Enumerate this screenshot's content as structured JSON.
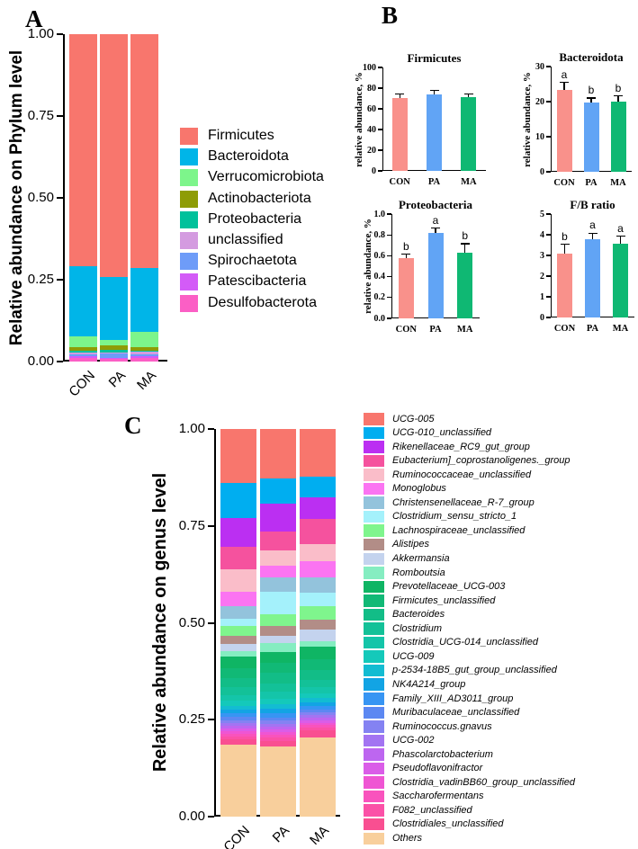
{
  "figure": {
    "background": "#ffffff",
    "panel_labels": {
      "a": "A",
      "b": "B",
      "c": "C"
    },
    "groups": [
      "CON",
      "PA",
      "MA"
    ],
    "group_bar_colors": [
      "#F9918B",
      "#61A4F5",
      "#0FB873"
    ]
  },
  "chart_data": [
    {
      "id": "phylum_stack",
      "type": "bar",
      "stacked": true,
      "ylabel": "Relative abundance on Phylum level",
      "categories": [
        "CON",
        "PA",
        "MA"
      ],
      "ylim": [
        0,
        1
      ],
      "ytick_labels": [
        "1.00",
        "0.75",
        "0.50",
        "0.25",
        "0.00"
      ],
      "legend_position": "right",
      "series": [
        {
          "name": "Firmicutes",
          "color": "#F8766D",
          "values": [
            0.71,
            0.742,
            0.715
          ]
        },
        {
          "name": "Bacteroidota",
          "color": "#00B5E8",
          "values": [
            0.214,
            0.191,
            0.194
          ]
        },
        {
          "name": "Verrucomicrobiota",
          "color": "#7DF58B",
          "values": [
            0.032,
            0.018,
            0.048
          ]
        },
        {
          "name": "Actinobacteriota",
          "color": "#8E9C06",
          "values": [
            0.01,
            0.013,
            0.009
          ]
        },
        {
          "name": "Proteobacteria",
          "color": "#00C19B",
          "values": [
            0.006,
            0.008,
            0.005
          ]
        },
        {
          "name": "unclassified",
          "color": "#D49BE0",
          "values": [
            0.005,
            0.004,
            0.007
          ]
        },
        {
          "name": "Spirochaetota",
          "color": "#6E9CF8",
          "values": [
            0.006,
            0.012,
            0.006
          ]
        },
        {
          "name": "Patescibacteria",
          "color": "#D35BF7",
          "values": [
            0.005,
            0.004,
            0.006
          ]
        },
        {
          "name": "Desulfobacterota",
          "color": "#FB5FC5",
          "values": [
            0.012,
            0.008,
            0.01
          ]
        }
      ]
    },
    {
      "id": "firmicutes",
      "type": "bar",
      "title": "Firmicutes",
      "ylabel": "relative abundance, %",
      "categories": [
        "CON",
        "PA",
        "MA"
      ],
      "values": [
        70.5,
        74.2,
        71.2
      ],
      "errors": [
        4.0,
        3.6,
        3.4
      ],
      "letters": [
        "",
        "",
        ""
      ],
      "ylim": [
        0,
        100
      ],
      "yticks": [
        0,
        20,
        40,
        60,
        80,
        100
      ],
      "ytick_labels": [
        "0",
        "20",
        "40",
        "60",
        "80",
        "100"
      ]
    },
    {
      "id": "bacteroidota",
      "type": "bar",
      "title": "Bacteroidota",
      "ylabel": "relative abundance, %",
      "categories": [
        "CON",
        "PA",
        "MA"
      ],
      "values": [
        23.3,
        19.8,
        20.1
      ],
      "errors": [
        2.2,
        1.2,
        1.5
      ],
      "letters": [
        "a",
        "b",
        "b"
      ],
      "ylim": [
        0,
        30
      ],
      "yticks": [
        0,
        10,
        20,
        30
      ],
      "ytick_labels": [
        "0",
        "10",
        "20",
        "30"
      ]
    },
    {
      "id": "proteobacteria",
      "type": "bar",
      "title": "Proteobacteria",
      "ylabel": "relative abundance, %",
      "categories": [
        "CON",
        "PA",
        "MA"
      ],
      "values": [
        0.575,
        0.815,
        0.63
      ],
      "errors": [
        0.04,
        0.05,
        0.085
      ],
      "letters": [
        "b",
        "a",
        "b"
      ],
      "ylim": [
        0,
        1
      ],
      "yticks": [
        0,
        0.2,
        0.4,
        0.6,
        0.8,
        1.0
      ],
      "ytick_labels": [
        "0.0",
        "0.2",
        "0.4",
        "0.6",
        "0.8",
        "1.0"
      ]
    },
    {
      "id": "fb_ratio",
      "type": "bar",
      "title": "F/B ratio",
      "ylabel": "",
      "categories": [
        "CON",
        "PA",
        "MA"
      ],
      "values": [
        3.08,
        3.77,
        3.56
      ],
      "errors": [
        0.45,
        0.3,
        0.37
      ],
      "letters": [
        "b",
        "a",
        "a"
      ],
      "ylim": [
        0,
        5
      ],
      "yticks": [
        0,
        1,
        2,
        3,
        4,
        5
      ],
      "ytick_labels": [
        "0",
        "1",
        "2",
        "3",
        "4",
        "5"
      ]
    },
    {
      "id": "genus_stack",
      "type": "bar",
      "stacked": true,
      "ylabel": "Relative abundance on genus level",
      "categories": [
        "CON",
        "PA",
        "MA"
      ],
      "ylim": [
        0,
        1
      ],
      "ytick_labels": [
        "1.00",
        "0.75",
        "0.50",
        "0.25",
        "0.00"
      ],
      "legend_position": "right",
      "series": [
        {
          "name": "UCG-005",
          "color": "#F8766D",
          "values": [
            0.139,
            0.127,
            0.123
          ]
        },
        {
          "name": "UCG-010_unclassified",
          "color": "#00AEF0",
          "values": [
            0.091,
            0.066,
            0.053
          ]
        },
        {
          "name": "Rikenellaceae_RC9_gut_group",
          "color": "#BB2FF2",
          "values": [
            0.073,
            0.071,
            0.057
          ]
        },
        {
          "name": "Eubacterium]_coprostanoligenes._group",
          "color": "#F5529E",
          "values": [
            0.059,
            0.05,
            0.064
          ]
        },
        {
          "name": "Ruminococcaceae_unclassified",
          "color": "#FABDC9",
          "values": [
            0.059,
            0.039,
            0.043
          ]
        },
        {
          "name": "Monoglobus",
          "color": "#FB74F2",
          "values": [
            0.035,
            0.031,
            0.043
          ]
        },
        {
          "name": "Christensenellaceae_R-7_group",
          "color": "#93C3DC",
          "values": [
            0.034,
            0.035,
            0.039
          ]
        },
        {
          "name": "Clostridium_sensu_stricto_1",
          "color": "#A4F1FB",
          "values": [
            0.018,
            0.058,
            0.035
          ]
        },
        {
          "name": "Lachnospiraceae_unclassified",
          "color": "#7FF58D",
          "values": [
            0.026,
            0.031,
            0.035
          ]
        },
        {
          "name": "Alistipes",
          "color": "#B28D87",
          "values": [
            0.02,
            0.026,
            0.025
          ]
        },
        {
          "name": "Akkermansia",
          "color": "#C4D3EE",
          "values": [
            0.02,
            0.018,
            0.03
          ]
        },
        {
          "name": "Romboutsia",
          "color": "#85EDC1",
          "values": [
            0.013,
            0.024,
            0.015
          ]
        },
        {
          "name": "Prevotellaceae_UCG-003",
          "color": "#0FB564",
          "values": [
            0.03,
            0.028,
            0.032
          ]
        },
        {
          "name": "Firmicutes_unclassified",
          "color": "#11B976",
          "values": [
            0.025,
            0.026,
            0.027
          ]
        },
        {
          "name": "Bacteroides",
          "color": "#12BD87",
          "values": [
            0.025,
            0.026,
            0.026
          ]
        },
        {
          "name": "Clostridium",
          "color": "#13C198",
          "values": [
            0.02,
            0.022,
            0.02
          ]
        },
        {
          "name": "Clostridia_UCG-014_unclassified",
          "color": "#14C5A9",
          "values": [
            0.015,
            0.018,
            0.016
          ]
        },
        {
          "name": "UCG-009",
          "color": "#14C9BA",
          "values": [
            0.012,
            0.014,
            0.012
          ]
        },
        {
          "name": "p-2534-18B5_gut_group_unclassified",
          "color": "#13BCD2",
          "values": [
            0.01,
            0.012,
            0.01
          ]
        },
        {
          "name": "NK4A214_group",
          "color": "#12A4E4",
          "values": [
            0.01,
            0.012,
            0.01
          ]
        },
        {
          "name": "Family_XIII_AD3011_group",
          "color": "#3795F3",
          "values": [
            0.009,
            0.01,
            0.009
          ]
        },
        {
          "name": "Muribaculaceae_unclassified",
          "color": "#5C88F2",
          "values": [
            0.008,
            0.009,
            0.008
          ]
        },
        {
          "name": "Ruminococcus.gnavus",
          "color": "#8482F2",
          "values": [
            0.008,
            0.008,
            0.007
          ]
        },
        {
          "name": "UCG-002",
          "color": "#A374F2",
          "values": [
            0.007,
            0.008,
            0.007
          ]
        },
        {
          "name": "Phascolarctobacterium",
          "color": "#BD66F0",
          "values": [
            0.007,
            0.007,
            0.006
          ]
        },
        {
          "name": "Pseudoflavonifractor",
          "color": "#DA5DE8",
          "values": [
            0.007,
            0.007,
            0.006
          ]
        },
        {
          "name": "Clostridia_vadinBB60_group_unclassified",
          "color": "#EF55D3",
          "values": [
            0.007,
            0.007,
            0.006
          ]
        },
        {
          "name": "Saccharofermentans",
          "color": "#F953BD",
          "values": [
            0.007,
            0.007,
            0.006
          ]
        },
        {
          "name": "F082_unclassified",
          "color": "#FB51A7",
          "values": [
            0.008,
            0.008,
            0.007
          ]
        },
        {
          "name": "Clostridiales_unclassified",
          "color": "#F94F91",
          "values": [
            0.014,
            0.014,
            0.019
          ]
        },
        {
          "name": "Others",
          "color": "#F8CF9C",
          "values": [
            0.184,
            0.181,
            0.204
          ]
        }
      ]
    }
  ]
}
